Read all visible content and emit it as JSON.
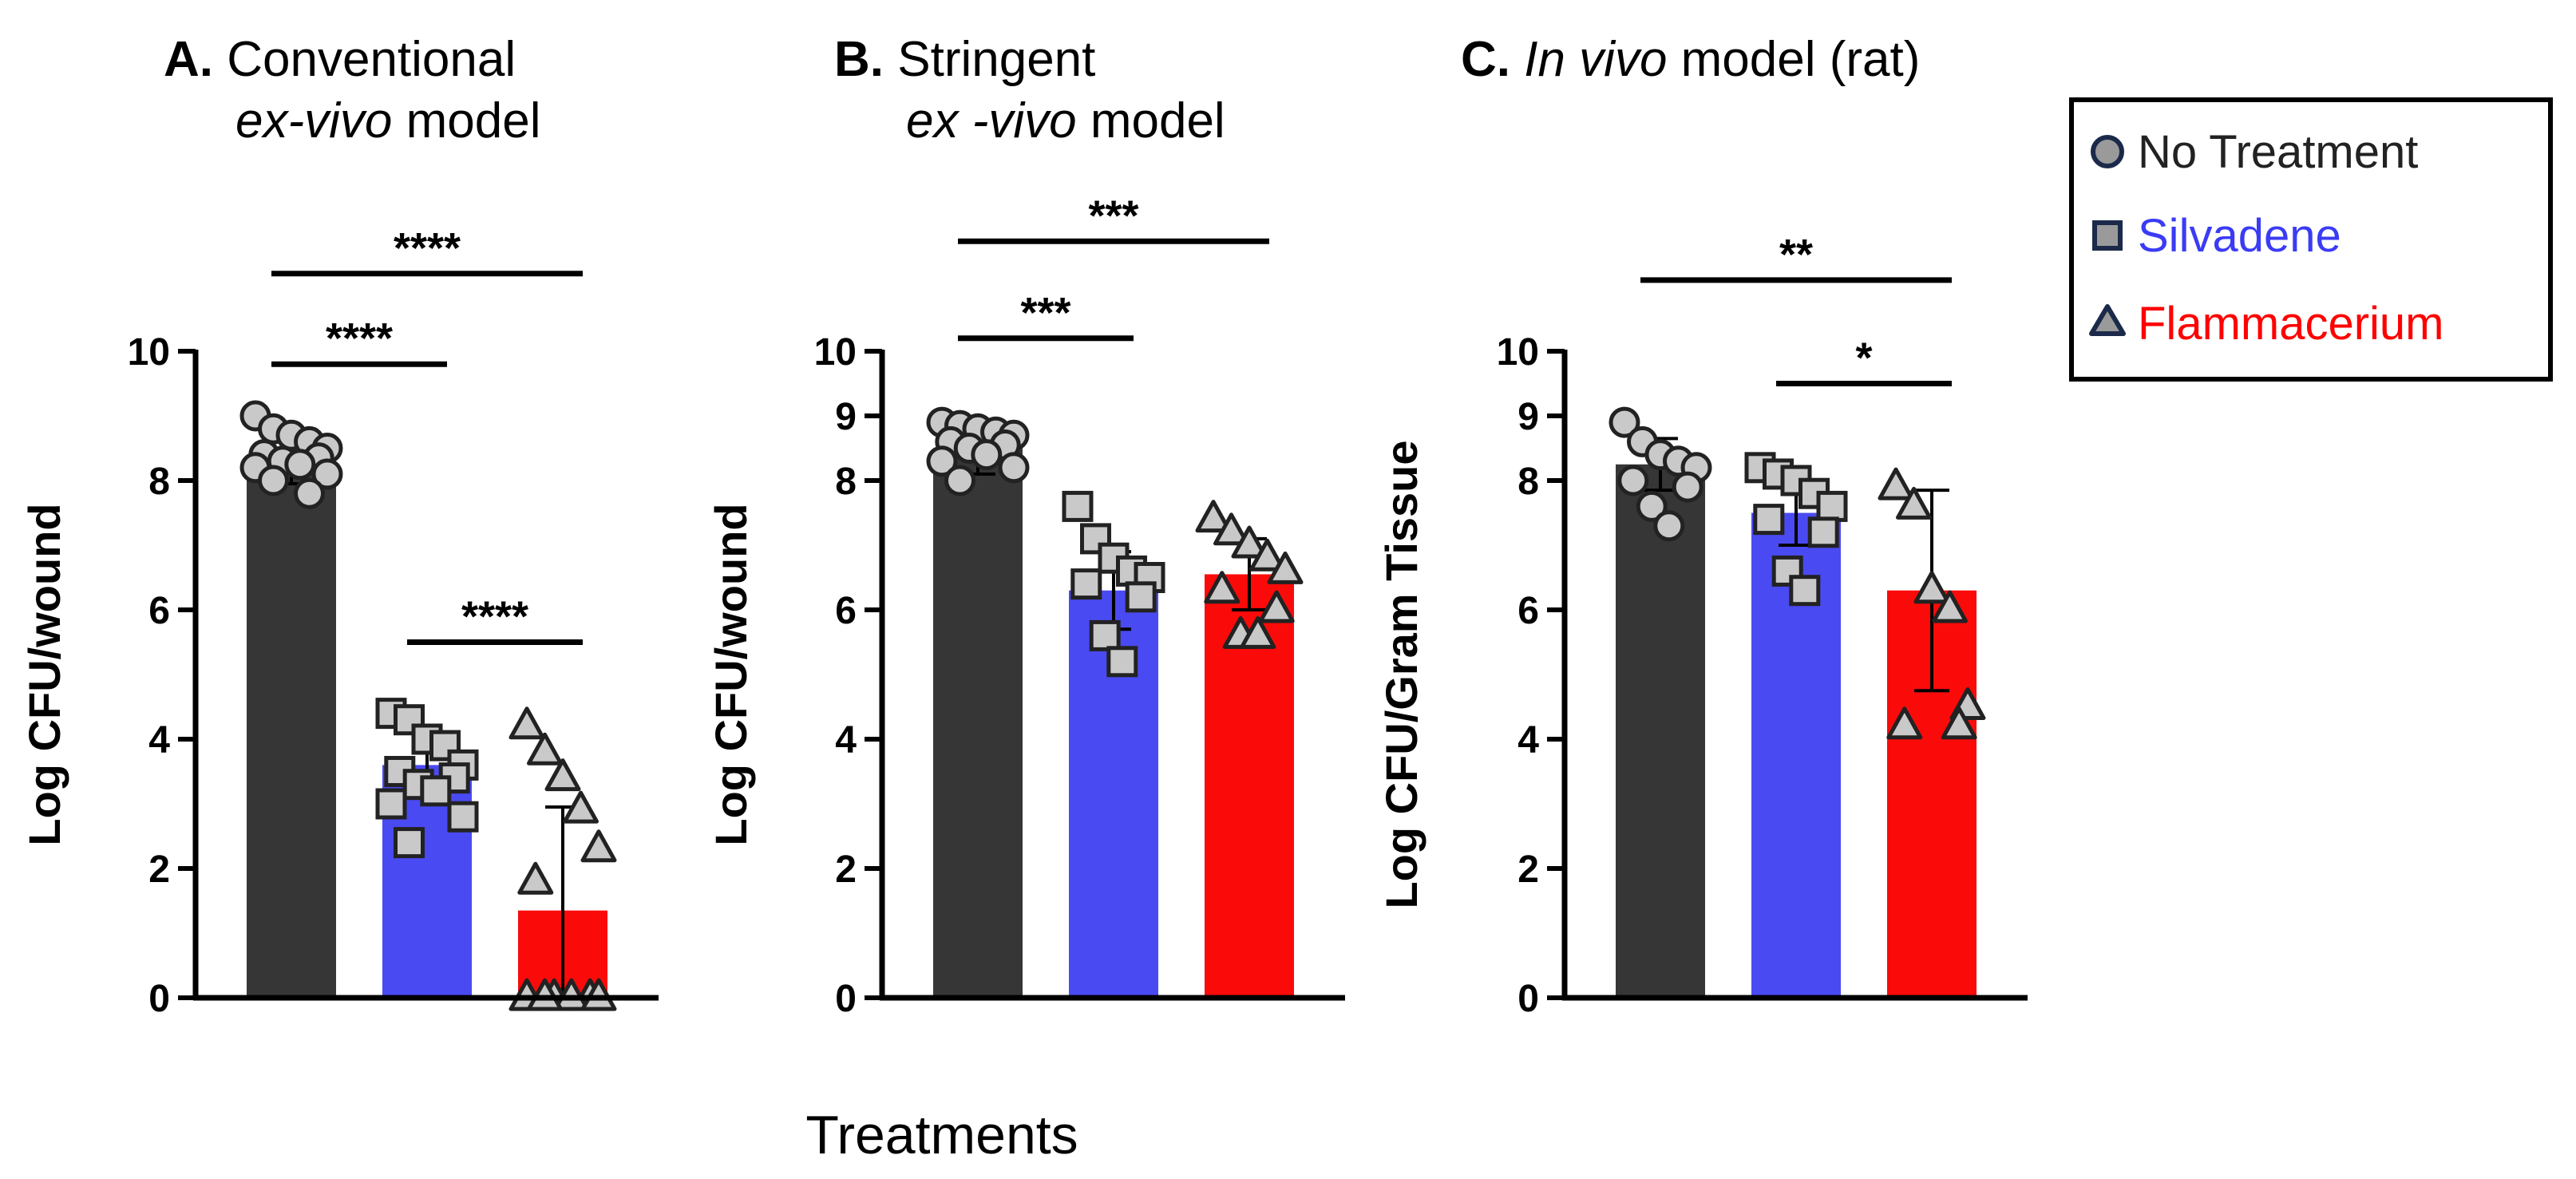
{
  "xlabel": "Treatments",
  "legend": [
    {
      "label": "No Treatment",
      "marker": "circle",
      "color": "#222222"
    },
    {
      "label": "Silvadene",
      "marker": "square",
      "color": "#3b3bf5"
    },
    {
      "label": "Flammacerium",
      "marker": "triangle",
      "color": "#ff0000"
    }
  ],
  "colors": {
    "no_treatment": "#363636",
    "silvadene": "#4a4af2",
    "flammacerium": "#fb0a0a",
    "marker_fill": "#c9c9c9"
  },
  "chart_data": [
    {
      "type": "bar",
      "title_bold": "A.",
      "title": "Conventional",
      "title_line2_italic": "ex-vivo",
      "title_line2": "model",
      "ylabel": "Log CFU/wound",
      "ylim": [
        0,
        10
      ],
      "yticks": [
        0,
        2,
        4,
        6,
        8,
        10
      ],
      "categories": [
        "No Treatment",
        "Silvadene",
        "Flammacerium"
      ],
      "values": [
        8.3,
        3.6,
        1.35
      ],
      "errors": [
        0.35,
        0.5,
        1.6
      ],
      "points": [
        [
          9.0,
          8.8,
          8.7,
          8.6,
          8.5,
          8.4,
          8.35,
          8.3,
          8.25,
          8.2,
          8.1,
          8.0,
          7.8
        ],
        [
          4.4,
          4.3,
          4.0,
          3.9,
          3.6,
          3.5,
          3.4,
          3.3,
          3.2,
          3.0,
          2.8,
          2.4
        ],
        [
          4.2,
          3.8,
          3.4,
          2.9,
          2.3,
          1.8,
          0,
          0,
          0,
          0,
          0,
          0
        ]
      ],
      "significance": [
        {
          "from": 0,
          "to": 2,
          "label": "****",
          "y": 11.2
        },
        {
          "from": 0,
          "to": 1,
          "label": "****",
          "y": 9.8
        },
        {
          "from": 1,
          "to": 2,
          "label": "****",
          "y": 5.5
        }
      ]
    },
    {
      "type": "bar",
      "title_bold": "B.",
      "title": "Stringent",
      "title_line2_italic": "ex -vivo",
      "title_line2": "model",
      "ylabel": "Log CFU/wound",
      "ylim": [
        0,
        10
      ],
      "yticks": [
        0,
        2,
        4,
        6,
        8,
        9,
        10
      ],
      "categories": [
        "No Treatment",
        "Silvadene",
        "Flammacerium"
      ],
      "values": [
        8.5,
        6.3,
        6.55
      ],
      "errors": [
        0.4,
        0.6,
        0.55
      ],
      "points": [
        [
          8.9,
          8.85,
          8.8,
          8.75,
          8.7,
          8.6,
          8.55,
          8.5,
          8.4,
          8.3,
          8.2,
          8.0
        ],
        [
          7.6,
          7.1,
          6.8,
          6.6,
          6.5,
          6.4,
          6.2,
          5.6,
          5.2
        ],
        [
          7.4,
          7.2,
          7.0,
          6.8,
          6.6,
          6.3,
          6.0,
          5.6,
          5.6
        ]
      ],
      "significance": [
        {
          "from": 0,
          "to": 2,
          "label": "***",
          "y": 11.7
        },
        {
          "from": 0,
          "to": 1,
          "label": "***",
          "y": 10.2
        }
      ]
    },
    {
      "type": "bar",
      "title_bold": "C.",
      "title_italic": "In vivo",
      "title": "model (rat)",
      "ylabel": "Log CFU/Gram Tissue",
      "ylim": [
        0,
        10
      ],
      "yticks": [
        0,
        2,
        4,
        6,
        8,
        9,
        10
      ],
      "categories": [
        "No Treatment",
        "Silvadene",
        "Flammacerium"
      ],
      "values": [
        8.25,
        7.5,
        6.3
      ],
      "errors": [
        0.4,
        0.5,
        1.55
      ],
      "points": [
        [
          8.9,
          8.6,
          8.4,
          8.3,
          8.2,
          8.0,
          7.9,
          7.6,
          7.3
        ],
        [
          8.2,
          8.1,
          8.0,
          7.8,
          7.6,
          7.4,
          7.2,
          6.6,
          6.3
        ],
        [
          7.9,
          7.6,
          6.3,
          6.0,
          4.5,
          4.2,
          4.2
        ]
      ],
      "significance": [
        {
          "from": 0,
          "to": 2,
          "label": "**",
          "y": 11.1
        },
        {
          "from": 1,
          "to": 2,
          "label": "*",
          "y": 9.5
        }
      ]
    }
  ]
}
